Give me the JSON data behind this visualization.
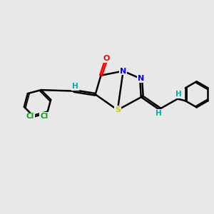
{
  "bg_color": "#e8e8e8",
  "atom_colors": {
    "C": "#000000",
    "N": "#0000ff",
    "O": "#ff0000",
    "S": "#cccc00",
    "Cl": "#00aa00",
    "H": "#00aaaa"
  },
  "bond_color": "#000000",
  "figsize": [
    3.0,
    3.0
  ],
  "dpi": 100
}
